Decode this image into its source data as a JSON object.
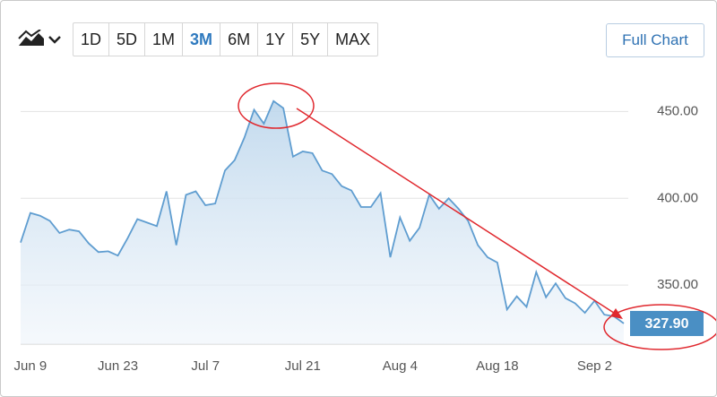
{
  "toolbar": {
    "buttons": [
      "1D",
      "5D",
      "1M",
      "3M",
      "6M",
      "1Y",
      "5Y",
      "MAX"
    ],
    "active": 3
  },
  "full_chart": "Full Chart",
  "chart_data": {
    "type": "area",
    "categories": [
      null,
      "Jun 9",
      null,
      null,
      null,
      null,
      null,
      null,
      null,
      null,
      "Jun 23",
      null,
      null,
      null,
      null,
      null,
      null,
      null,
      null,
      "Jul 7",
      null,
      null,
      null,
      null,
      null,
      null,
      null,
      null,
      null,
      "Jul 21",
      null,
      null,
      null,
      null,
      null,
      null,
      null,
      null,
      null,
      "Aug 4",
      null,
      null,
      null,
      null,
      null,
      null,
      null,
      null,
      null,
      "Aug 18",
      null,
      null,
      null,
      null,
      null,
      null,
      null,
      null,
      null,
      "Sep 2",
      null,
      null,
      null
    ],
    "values": [
      374.5,
      391.6,
      390,
      387,
      380,
      382,
      381,
      374,
      369,
      369.5,
      367,
      377,
      388,
      386,
      384,
      404,
      373,
      402,
      404,
      396,
      397,
      416,
      422,
      435,
      451,
      443,
      456,
      452,
      424,
      427,
      426,
      416,
      414,
      407,
      404.5,
      395,
      395,
      403,
      366,
      389,
      375.5,
      383,
      402,
      394,
      400,
      394,
      387,
      373,
      366,
      363,
      336,
      343.5,
      337.5,
      357.5,
      343,
      351,
      342.5,
      339.5,
      334,
      341,
      333,
      332,
      327.9
    ],
    "color": "#5f9dd0",
    "ylim": [
      316,
      475
    ],
    "yticks": [
      {
        "value": 350,
        "label": "350.00"
      },
      {
        "value": 400,
        "label": "400.00"
      },
      {
        "value": 450,
        "label": "450.00"
      }
    ],
    "grid": true,
    "current_price": {
      "value": 327.9,
      "label": "327.90"
    }
  }
}
